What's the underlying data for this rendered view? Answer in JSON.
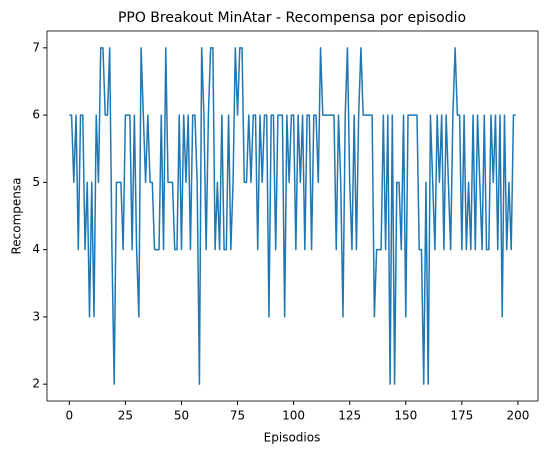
{
  "chart_data": {
    "type": "line",
    "title": "PPO Breakout MinAtar - Recompensa por episodio",
    "xlabel": "Episodios",
    "ylabel": "Recompensa",
    "color": "#1f77b4",
    "x": [
      0,
      1,
      2,
      3,
      4,
      5,
      6,
      7,
      8,
      9,
      10,
      11,
      12,
      13,
      14,
      15,
      16,
      17,
      18,
      19,
      20,
      21,
      22,
      23,
      24,
      25,
      26,
      27,
      28,
      29,
      30,
      31,
      32,
      33,
      34,
      35,
      36,
      37,
      38,
      39,
      40,
      41,
      42,
      43,
      44,
      45,
      46,
      47,
      48,
      49,
      50,
      51,
      52,
      53,
      54,
      55,
      56,
      57,
      58,
      59,
      60,
      61,
      62,
      63,
      64,
      65,
      66,
      67,
      68,
      69,
      70,
      71,
      72,
      73,
      74,
      75,
      76,
      77,
      78,
      79,
      80,
      81,
      82,
      83,
      84,
      85,
      86,
      87,
      88,
      89,
      90,
      91,
      92,
      93,
      94,
      95,
      96,
      97,
      98,
      99,
      100,
      101,
      102,
      103,
      104,
      105,
      106,
      107,
      108,
      109,
      110,
      111,
      112,
      113,
      114,
      115,
      116,
      117,
      118,
      119,
      120,
      121,
      122,
      123,
      124,
      125,
      126,
      127,
      128,
      129,
      130,
      131,
      132,
      133,
      134,
      135,
      136,
      137,
      138,
      139,
      140,
      141,
      142,
      143,
      144,
      145,
      146,
      147,
      148,
      149,
      150,
      151,
      152,
      153,
      154,
      155,
      156,
      157,
      158,
      159,
      160,
      161,
      162,
      163,
      164,
      165,
      166,
      167,
      168,
      169,
      170,
      171,
      172,
      173,
      174,
      175,
      176,
      177,
      178,
      179,
      180,
      181,
      182,
      183,
      184,
      185,
      186,
      187,
      188,
      189,
      190,
      191,
      192,
      193,
      194,
      195,
      196,
      197,
      198,
      199
    ],
    "values": [
      6,
      6,
      5,
      6,
      4,
      6,
      6,
      4,
      5,
      3,
      5,
      3,
      6,
      5,
      7,
      7,
      6,
      6,
      7,
      4,
      2,
      5,
      5,
      5,
      4,
      6,
      6,
      6,
      4,
      6,
      4,
      3,
      7,
      6,
      5,
      6,
      5,
      5,
      4,
      4,
      4,
      6,
      4,
      7,
      5,
      5,
      5,
      4,
      4,
      6,
      4,
      6,
      5,
      6,
      4,
      6,
      6,
      5,
      2,
      7,
      6,
      4,
      6,
      7,
      7,
      4,
      5,
      4,
      6,
      4,
      4,
      6,
      4,
      5,
      7,
      6,
      7,
      7,
      5,
      5,
      6,
      5,
      6,
      6,
      4,
      6,
      5,
      6,
      6,
      3,
      6,
      6,
      4,
      6,
      6,
      6,
      3,
      6,
      5,
      6,
      6,
      4,
      6,
      5,
      6,
      4,
      6,
      6,
      4,
      6,
      6,
      5,
      7,
      6,
      6,
      6,
      6,
      6,
      6,
      4,
      6,
      5,
      3,
      6,
      7,
      5,
      4,
      6,
      4,
      6,
      7,
      6,
      6,
      6,
      6,
      6,
      3,
      4,
      4,
      4,
      6,
      4,
      6,
      2,
      6,
      2,
      5,
      5,
      4,
      6,
      3,
      6,
      6,
      6,
      6,
      6,
      4,
      4,
      2,
      5,
      2,
      6,
      5,
      4,
      6,
      5,
      6,
      4,
      6,
      5,
      4,
      6,
      7,
      6,
      6,
      4,
      6,
      4,
      5,
      4,
      6,
      4,
      6,
      5,
      4,
      6,
      4,
      4,
      6,
      5,
      6,
      4,
      6,
      3,
      6,
      4,
      5,
      4,
      6,
      6
    ],
    "xlim": [
      -9.95,
      208.95
    ],
    "ylim": [
      1.75,
      7.25
    ],
    "xticks": [
      0,
      25,
      50,
      75,
      100,
      125,
      150,
      175,
      200
    ],
    "yticks": [
      2,
      3,
      4,
      5,
      6,
      7
    ]
  }
}
